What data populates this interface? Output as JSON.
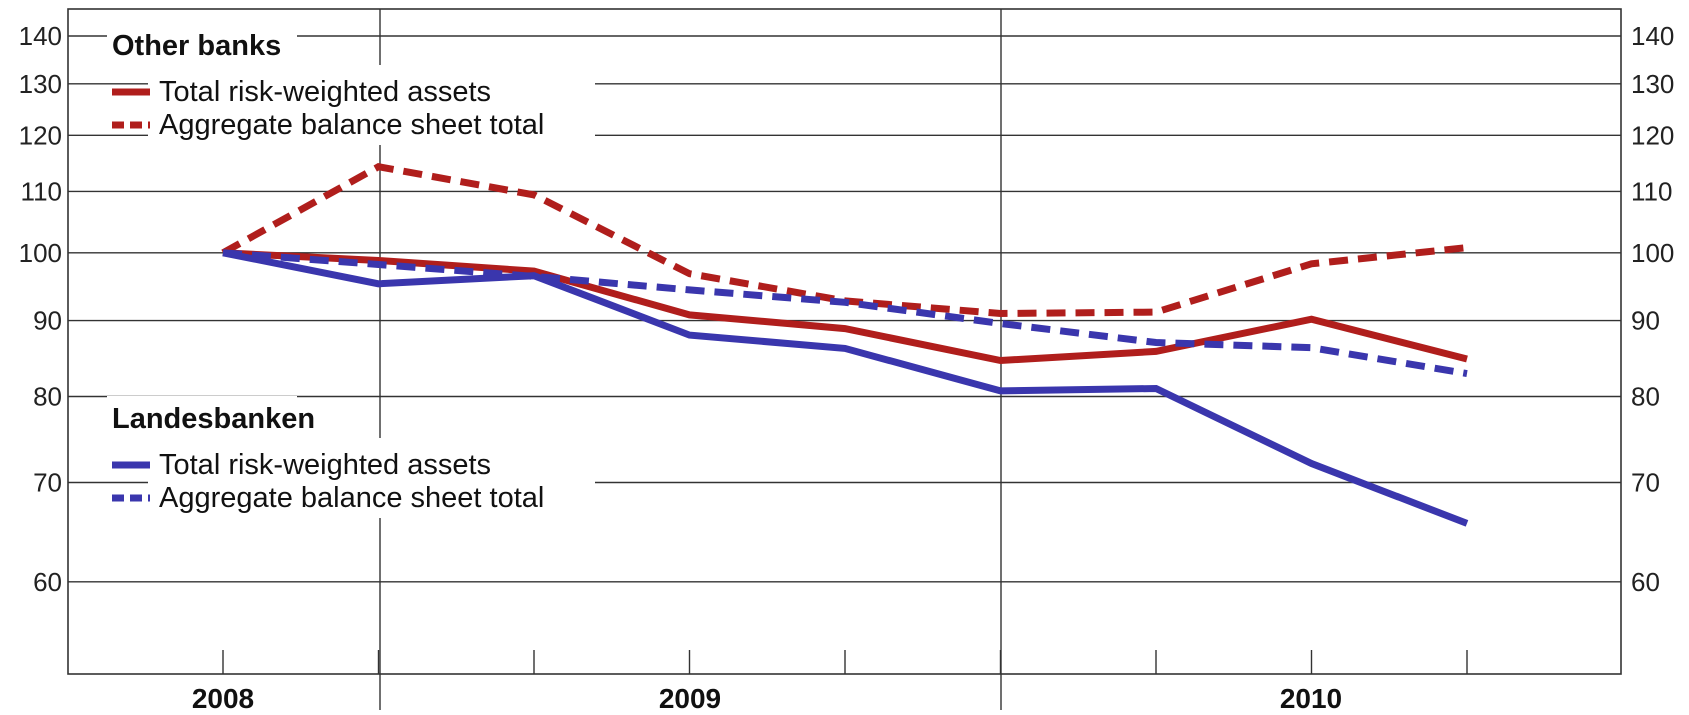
{
  "chart_data": {
    "type": "line",
    "y_scale": "log",
    "ylim": [
      52,
      146
    ],
    "y_ticks": [
      60,
      70,
      80,
      90,
      100,
      110,
      120,
      130,
      140
    ],
    "x_labels": [
      "2008",
      "2009",
      "2010"
    ],
    "grid": "horizontal",
    "groups": [
      {
        "title": "Other banks",
        "color": "#b01e1c",
        "series": [
          {
            "name": "Total risk-weighted assets",
            "style": "solid",
            "values": [
              100,
              98.8,
              97.2,
              90.8,
              88.9,
              84.6,
              85.8,
              90.2,
              84.8
            ]
          },
          {
            "name": "Aggregate balance sheet total",
            "style": "dashed",
            "values": [
              100,
              114.3,
              109.4,
              96.8,
              92.8,
              91.0,
              91.2,
              98.3,
              100.8
            ]
          }
        ]
      },
      {
        "title": "Landesbanken",
        "color": "#3a36ad",
        "series": [
          {
            "name": "Total risk-weighted assets",
            "style": "solid",
            "values": [
              100,
              95.3,
              96.5,
              88.0,
              86.2,
              80.7,
              81.0,
              72.1,
              65.7
            ]
          },
          {
            "name": "Aggregate balance sheet total",
            "style": "dashed",
            "values": [
              100,
              98.2,
              96.4,
              94.4,
              92.6,
              89.6,
              87.0,
              86.3,
              82.9
            ]
          }
        ]
      }
    ]
  }
}
